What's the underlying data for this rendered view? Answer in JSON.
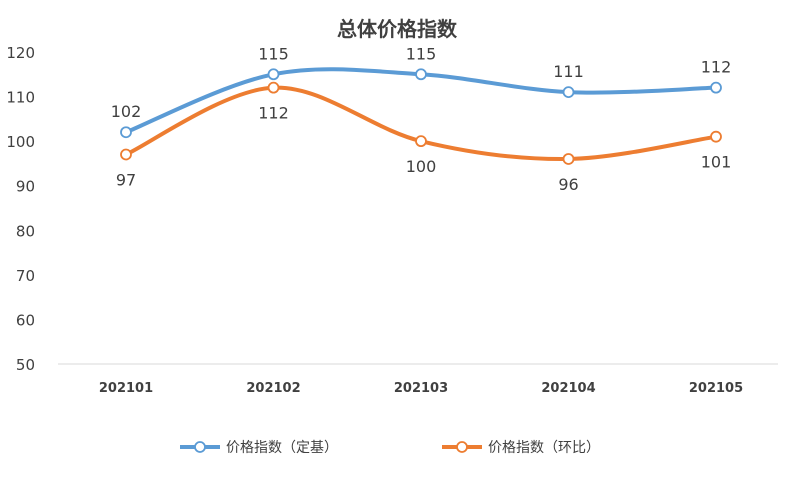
{
  "chart_data": {
    "type": "line",
    "title": "总体价格指数",
    "xlabel": "",
    "ylabel": "",
    "categories": [
      "202101",
      "202102",
      "202103",
      "202104",
      "202105"
    ],
    "ylim": [
      50,
      120
    ],
    "yticks": [
      50,
      60,
      70,
      80,
      90,
      100,
      110,
      120
    ],
    "grid": false,
    "smooth": true,
    "legend": "bottom",
    "series": [
      {
        "name": "价格指数（定基）",
        "values": [
          102,
          115,
          115,
          111,
          112
        ],
        "color": "#5b9bd5",
        "label_position": "above"
      },
      {
        "name": "价格指数（环比）",
        "values": [
          97,
          112,
          100,
          96,
          101
        ],
        "color": "#ed7d31",
        "label_position": "below"
      }
    ]
  }
}
